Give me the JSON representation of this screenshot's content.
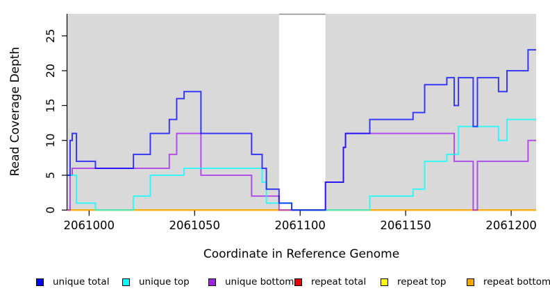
{
  "chart_data": {
    "type": "line",
    "subtype": "step-coverage",
    "title": "",
    "xlabel": "Coordinate in Reference Genome",
    "ylabel": "Read Coverage Depth",
    "x_domain": [
      2060989.7,
      2061211.8
    ],
    "ylim": [
      0,
      28.2
    ],
    "x_ticks": [
      2061000,
      2061050,
      2061100,
      2061150,
      2061200
    ],
    "y_ticks": [
      0,
      5,
      10,
      15,
      20,
      25
    ],
    "grid": false,
    "legend_position": "bottom",
    "panel_bg": "#d9d9d9",
    "gap_region": {
      "start": 2061090,
      "end": 2061112,
      "fill": "#ffffff",
      "top_edge_color": "#8a8a8a"
    },
    "line_opacity": 0.75,
    "draw_order": [
      3,
      4,
      5,
      2,
      1,
      0
    ],
    "series": [
      {
        "name": "unique-total",
        "label": "unique total",
        "color": "#0000ff",
        "steps": [
          [
            2060990,
            5
          ],
          [
            2060991,
            10
          ],
          [
            2060992,
            11
          ],
          [
            2060994,
            7
          ],
          [
            2061003,
            6
          ],
          [
            2061021,
            8
          ],
          [
            2061029,
            11
          ],
          [
            2061038,
            13
          ],
          [
            2061041.5,
            16
          ],
          [
            2061045,
            17
          ],
          [
            2061053,
            11
          ],
          [
            2061077,
            8
          ],
          [
            2061082,
            6
          ],
          [
            2061084,
            3
          ],
          [
            2061090,
            1
          ],
          [
            2061096,
            0
          ],
          [
            2061112,
            4
          ],
          [
            2061120.5,
            9
          ],
          [
            2061121.5,
            11
          ],
          [
            2061133,
            13
          ],
          [
            2061153.5,
            14
          ],
          [
            2061159,
            18
          ],
          [
            2061169.5,
            19
          ],
          [
            2061173,
            15
          ],
          [
            2061175,
            19
          ],
          [
            2061182,
            12
          ],
          [
            2061184,
            19
          ],
          [
            2061194,
            17
          ],
          [
            2061198,
            20
          ],
          [
            2061208,
            23
          ]
        ]
      },
      {
        "name": "unique-top",
        "label": "unique top",
        "color": "#00ffff",
        "steps": [
          [
            2060990,
            5
          ],
          [
            2060994,
            1
          ],
          [
            2061003,
            0
          ],
          [
            2061021,
            2
          ],
          [
            2061029,
            5
          ],
          [
            2061045,
            6
          ],
          [
            2061082,
            4
          ],
          [
            2061084,
            1
          ],
          [
            2061096,
            0
          ],
          [
            2061133,
            2
          ],
          [
            2061153.5,
            3
          ],
          [
            2061159,
            7
          ],
          [
            2061169.5,
            8
          ],
          [
            2061175,
            12
          ],
          [
            2061194,
            10
          ],
          [
            2061198,
            13
          ]
        ]
      },
      {
        "name": "unique-bottom",
        "label": "unique bottom",
        "color": "#a020f0",
        "steps": [
          [
            2060990,
            0
          ],
          [
            2060991,
            5
          ],
          [
            2060992,
            6
          ],
          [
            2061038,
            8
          ],
          [
            2061041.5,
            11
          ],
          [
            2061053,
            5
          ],
          [
            2061077,
            2
          ],
          [
            2061090,
            0
          ],
          [
            2061112,
            4
          ],
          [
            2061120.5,
            9
          ],
          [
            2061121.5,
            11
          ],
          [
            2061173,
            7
          ],
          [
            2061182,
            0
          ],
          [
            2061184,
            7
          ],
          [
            2061208,
            10
          ]
        ]
      },
      {
        "name": "repeat-total",
        "label": "repeat total",
        "color": "#ee0000",
        "steps": [
          [
            2060990,
            0
          ]
        ]
      },
      {
        "name": "repeat-top",
        "label": "repeat top",
        "color": "#ffff00",
        "steps": [
          [
            2060990,
            0
          ]
        ]
      },
      {
        "name": "repeat-bottom",
        "label": "repeat bottom",
        "color": "#ffa500",
        "steps": [
          [
            2060990,
            0
          ]
        ]
      }
    ]
  },
  "legend_x_positions": [
    52,
    176,
    300,
    424,
    548,
    672
  ]
}
